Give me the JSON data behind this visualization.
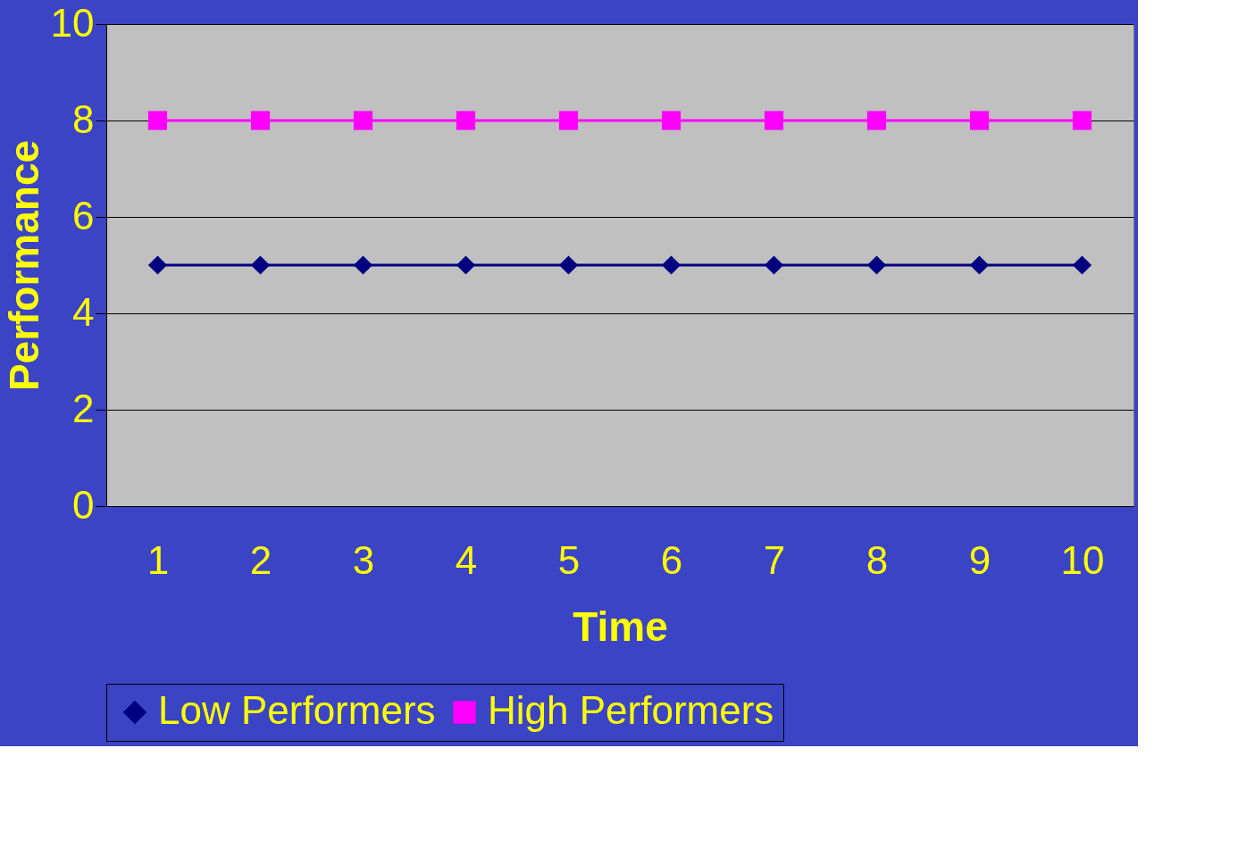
{
  "chart_data": {
    "type": "line",
    "xlabel": "Time",
    "ylabel": "Performance",
    "categories": [
      "1",
      "2",
      "3",
      "4",
      "5",
      "6",
      "7",
      "8",
      "9",
      "10"
    ],
    "series": [
      {
        "name": "Low Performers",
        "color": "#000080",
        "marker": "diamond",
        "values": [
          5,
          5,
          5,
          5,
          5,
          5,
          5,
          5,
          5,
          5
        ]
      },
      {
        "name": "High Performers",
        "color": "#ff00ff",
        "marker": "square",
        "values": [
          8,
          8,
          8,
          8,
          8,
          8,
          8,
          8,
          8,
          8
        ]
      }
    ],
    "ylim": [
      0,
      10
    ],
    "yticks": [
      0,
      2,
      4,
      6,
      8,
      10
    ],
    "grid": "y",
    "legend": "bottom",
    "line_style": "solid"
  }
}
